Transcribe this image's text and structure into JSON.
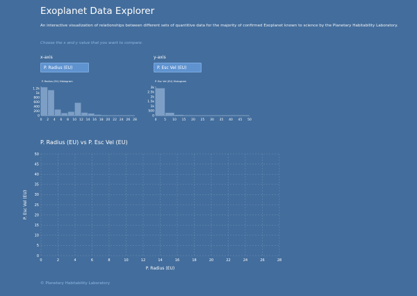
{
  "header": {
    "title": "Exoplanet Data Explorer",
    "description": "An interactive visualization of relationships between different sets of quantitive data for the majority of confirmed Exoplanet known to science by the Planetary Habitability Laboratory.",
    "prompt": "Choose the x and y value that you want to compare."
  },
  "controls": {
    "x_label": "x-axis",
    "y_label": "y-axis",
    "x_selected": "P. Radius (EU)",
    "y_selected": "P. Esc Vel (EU)"
  },
  "colors": {
    "background": "#436d9c",
    "bar": "#7d9fc6",
    "select": "#5f93d0"
  },
  "chart_data": [
    {
      "type": "bar",
      "title": "P. Radius (EU) Histogram",
      "x_ticks": [
        "0",
        "2",
        "4",
        "6",
        "8",
        "10",
        "12",
        "14",
        "16",
        "18",
        "20",
        "22",
        "24",
        "26",
        "28"
      ],
      "y_ticks": [
        "0",
        "200",
        "400",
        "600",
        "800",
        "1k",
        "1.2k"
      ],
      "xlim": [
        0,
        28
      ],
      "ylim": [
        0,
        1300
      ],
      "bin_width": 2,
      "bins_start": [
        0,
        2,
        4,
        6,
        8,
        10,
        12,
        14,
        16,
        18,
        20,
        22,
        24,
        26
      ],
      "values": [
        1260,
        1130,
        270,
        110,
        170,
        570,
        130,
        95,
        40,
        20,
        10,
        8,
        5,
        4
      ]
    },
    {
      "type": "bar",
      "title": "P. Esc Vel (EU) Histogram",
      "x_ticks": [
        "0",
        "5",
        "10",
        "15",
        "20",
        "25",
        "30",
        "35",
        "40",
        "45",
        "50"
      ],
      "y_ticks": [
        "0",
        "500",
        "1k",
        "1.5k",
        "2k",
        "2.5k",
        "3k"
      ],
      "xlim": [
        0,
        50
      ],
      "ylim": [
        0,
        3100
      ],
      "bin_width": 5,
      "bins_start": [
        0,
        5,
        10,
        15,
        20,
        25,
        30,
        35,
        40,
        45
      ],
      "values": [
        2900,
        300,
        80,
        40,
        20,
        10,
        8,
        5,
        3,
        2
      ]
    },
    {
      "type": "scatter",
      "title": "P. Radius (EU) vs P. Esc Vel (EU)",
      "xlabel": "P. Radius (EU)",
      "ylabel": "P. Esc Vel (EU)",
      "x_ticks": [
        "0",
        "2",
        "4",
        "6",
        "8",
        "10",
        "12",
        "14",
        "16",
        "18",
        "20",
        "22",
        "24",
        "26",
        "28"
      ],
      "y_ticks": [
        "0",
        "5",
        "10",
        "15",
        "20",
        "25",
        "30",
        "35",
        "40",
        "45",
        "50"
      ],
      "xlim": [
        0,
        28
      ],
      "ylim": [
        0,
        50
      ],
      "grid": true,
      "points": []
    }
  ],
  "footer": {
    "text": "© Planetary Habitability Laboratory"
  }
}
